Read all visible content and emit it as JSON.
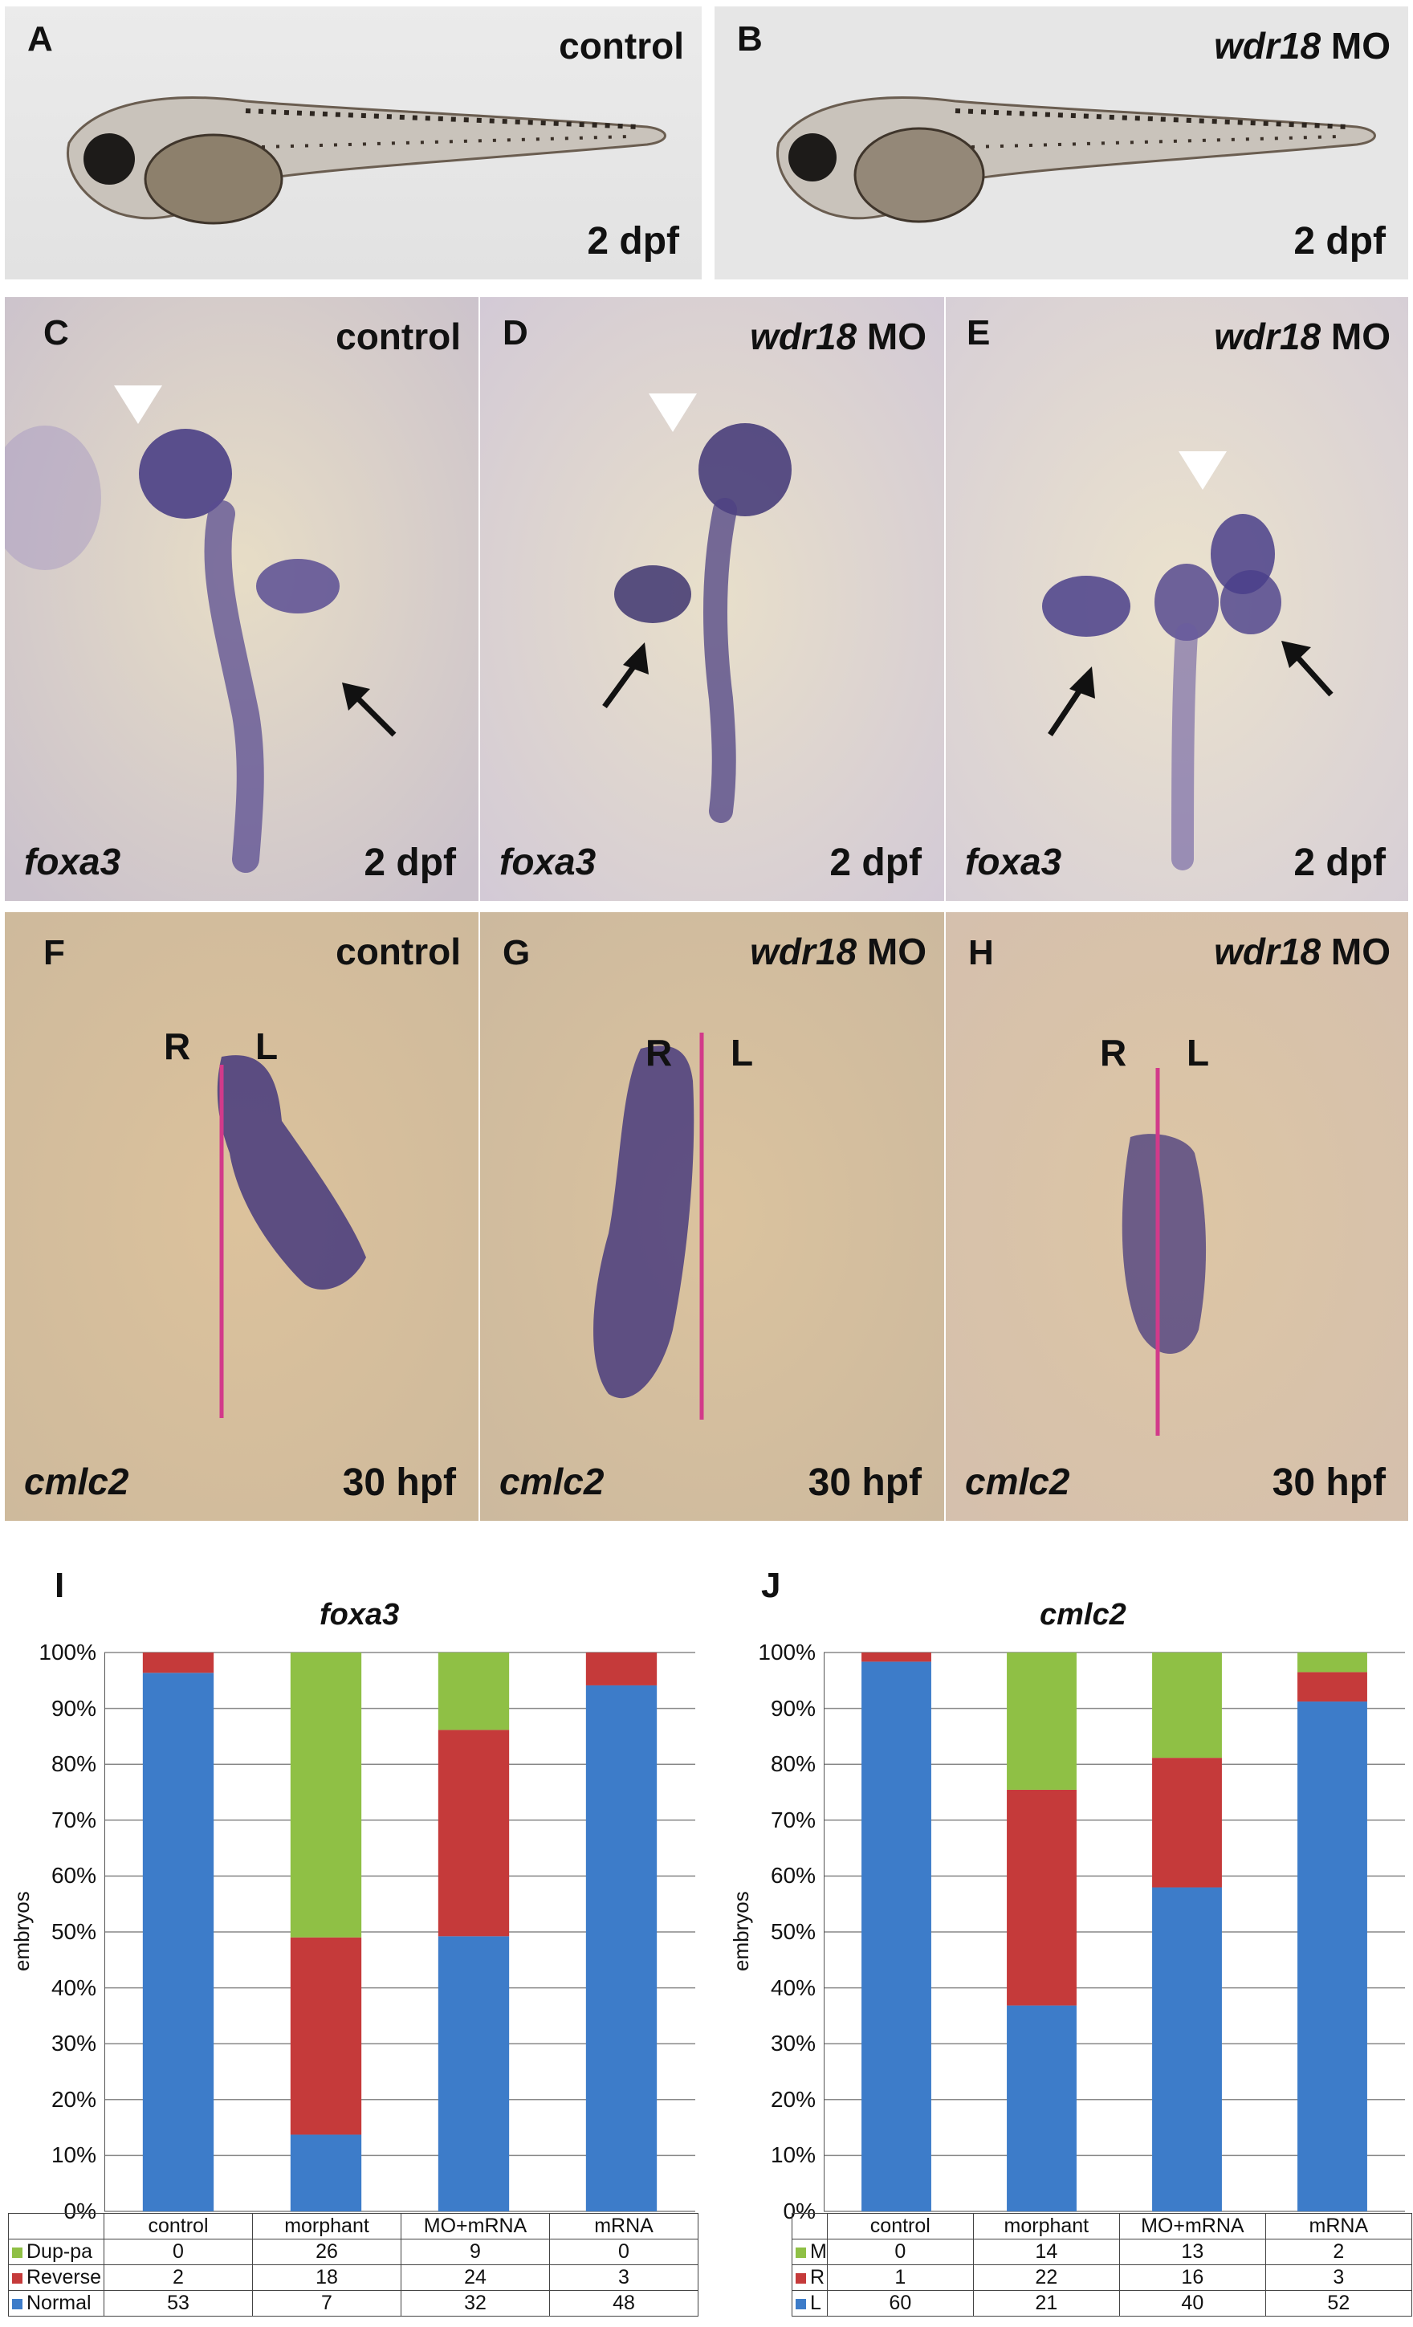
{
  "panels": {
    "A": {
      "label": "A",
      "condition": "control",
      "stage": "2 dpf"
    },
    "B": {
      "label": "B",
      "condition_gene": "wdr18",
      "condition_suffix": " MO",
      "stage": "2 dpf"
    },
    "C": {
      "label": "C",
      "condition": "control",
      "gene": "foxa3",
      "stage": "2 dpf"
    },
    "D": {
      "label": "D",
      "condition_gene": "wdr18",
      "condition_suffix": " MO",
      "gene": "foxa3",
      "stage": "2 dpf"
    },
    "E": {
      "label": "E",
      "condition_gene": "wdr18",
      "condition_suffix": " MO",
      "gene": "foxa3",
      "stage": "2 dpf"
    },
    "F": {
      "label": "F",
      "condition": "control",
      "gene": "cmlc2",
      "stage": "30 hpf",
      "right": "R",
      "left": "L"
    },
    "G": {
      "label": "G",
      "condition_gene": "wdr18",
      "condition_suffix": " MO",
      "gene": "cmlc2",
      "stage": "30 hpf",
      "right": "R",
      "left": "L"
    },
    "H": {
      "label": "H",
      "condition_gene": "wdr18",
      "condition_suffix": " MO",
      "gene": "cmlc2",
      "stage": "30 hpf",
      "right": "R",
      "left": "L"
    }
  },
  "colors": {
    "normal": "#3d7cc9",
    "reverse": "#c53a3a",
    "dup": "#8fc045",
    "midline": "#d23a8a",
    "stain": "#3c2f7a"
  },
  "chart_data": [
    {
      "panel_label": "I",
      "type": "bar",
      "stacked": true,
      "percent": true,
      "title": "foxa3",
      "ylabel": "embryos",
      "ylim": [
        0,
        100
      ],
      "yticks": [
        "0%",
        "10%",
        "20%",
        "30%",
        "40%",
        "50%",
        "60%",
        "70%",
        "80%",
        "90%",
        "100%"
      ],
      "categories": [
        "control",
        "morphant",
        "MO+mRNA",
        "mRNA"
      ],
      "series": [
        {
          "name": "Dup-pa",
          "values": [
            0,
            26,
            9,
            0
          ],
          "color": "#8fc045"
        },
        {
          "name": "Reverse",
          "values": [
            2,
            18,
            24,
            3
          ],
          "color": "#c53a3a"
        },
        {
          "name": "Normal",
          "values": [
            53,
            7,
            32,
            48
          ],
          "color": "#3d7cc9"
        }
      ]
    },
    {
      "panel_label": "J",
      "type": "bar",
      "stacked": true,
      "percent": true,
      "title": "cmlc2",
      "ylabel": "embryos",
      "ylim": [
        0,
        100
      ],
      "yticks": [
        "0%",
        "10%",
        "20%",
        "30%",
        "40%",
        "50%",
        "60%",
        "70%",
        "80%",
        "90%",
        "100%"
      ],
      "categories": [
        "control",
        "morphant",
        "MO+mRNA",
        "mRNA"
      ],
      "series": [
        {
          "name": "M",
          "values": [
            0,
            14,
            13,
            2
          ],
          "color": "#8fc045"
        },
        {
          "name": "R",
          "values": [
            1,
            22,
            16,
            3
          ],
          "color": "#c53a3a"
        },
        {
          "name": "L",
          "values": [
            60,
            21,
            40,
            52
          ],
          "color": "#3d7cc9"
        }
      ]
    }
  ]
}
